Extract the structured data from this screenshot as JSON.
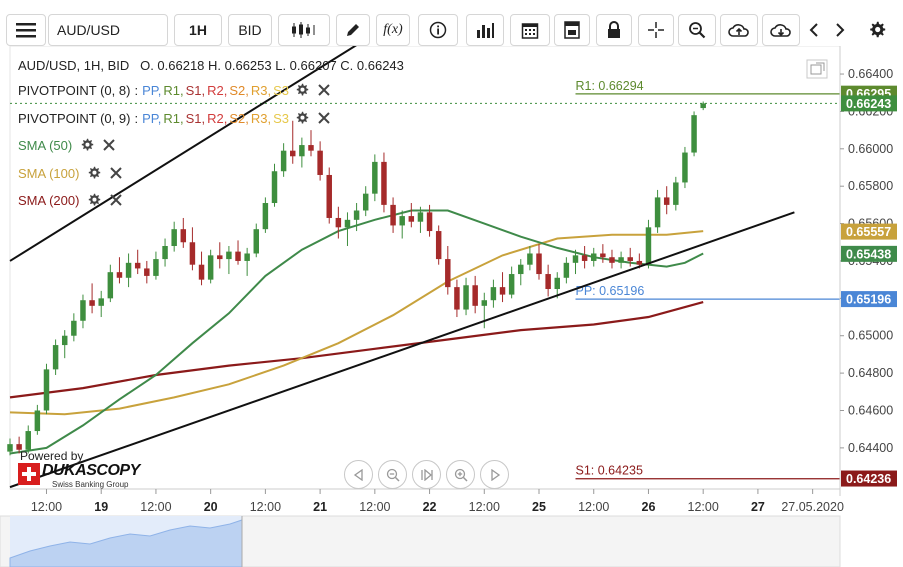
{
  "toolbar": {
    "symbol": "AUD/USD",
    "timeframe": "1H",
    "price_side": "BID",
    "fx_label": "f(x)"
  },
  "legend": {
    "ohlc": "AUD/USD, 1H, BID   O. 0.66218 H. 0.66253 L. 0.66207 C. 0.66243",
    "pivot1_name": "PIVOTPOINT (0, 8)",
    "pivot2_name": "PIVOTPOINT (0, 9)",
    "pivot_sep": ":",
    "pp": "PP,",
    "r1": "R1,",
    "s1": "S1,",
    "r2": "R2,",
    "s2": "S2,",
    "r3": "R3,",
    "s3": "S3",
    "sma50": "SMA (50)",
    "sma100": "SMA (100)",
    "sma200": "SMA (200)"
  },
  "logo": {
    "powered": "Powered by",
    "brand": "DUKASCOPY",
    "tagline": "Swiss Banking Group"
  },
  "colors": {
    "candle_up": "#3e8e3e",
    "candle_down": "#a52a2a",
    "sma50": "#3f8a4a",
    "sma100": "#c8a23c",
    "sma200": "#8b1a1a",
    "pp": "#4a86d6",
    "r1": "#5d8a2e",
    "s1": "#a83232",
    "r2": "#d23c3c",
    "s2": "#e08a2a",
    "r3": "#e0a030",
    "s3": "#e6c84a"
  },
  "chart_data": {
    "type": "candlestick",
    "symbol": "AUD/USD",
    "interval": "1H",
    "side": "BID",
    "last": {
      "open": 0.66218,
      "high": 0.66253,
      "low": 0.66207,
      "close": 0.66243
    },
    "ylim": [
      0.642,
      0.665
    ],
    "y_ticks": [
      0.644,
      0.646,
      0.648,
      0.65,
      0.652,
      0.654,
      0.656,
      0.658,
      0.66,
      0.662,
      0.664
    ],
    "y_tick_labels": [
      "0.64400",
      "0.64600",
      "0.64800",
      "0.65000",
      "0.65200",
      "0.65400",
      "0.65600",
      "0.65800",
      "0.66000",
      "0.66200",
      "0.66400"
    ],
    "x_ticks": [
      {
        "label": "12:00",
        "t": -6
      },
      {
        "label": "19",
        "t": 0
      },
      {
        "label": "12:00",
        "t": 6
      },
      {
        "label": "20",
        "t": 12
      },
      {
        "label": "12:00",
        "t": 18
      },
      {
        "label": "21",
        "t": 24
      },
      {
        "label": "12:00",
        "t": 30
      },
      {
        "label": "22",
        "t": 36
      },
      {
        "label": "12:00",
        "t": 42
      },
      {
        "label": "25",
        "t": 48
      },
      {
        "label": "12:00",
        "t": 54
      },
      {
        "label": "26",
        "t": 60
      },
      {
        "label": "12:00",
        "t": 66
      },
      {
        "label": "27",
        "t": 72
      },
      {
        "label": "27.05.2020",
        "t": 78
      }
    ],
    "x_range": [
      -10,
      81
    ],
    "price_tags": [
      {
        "label": "0.66295",
        "value": 0.66295,
        "color": "#5d8a2e"
      },
      {
        "label": "0.66243",
        "value": 0.66243,
        "color": "#3e8e3e"
      },
      {
        "label": "0.65557",
        "value": 0.65557,
        "color": "#c8a23c"
      },
      {
        "label": "0.65438",
        "value": 0.65438,
        "color": "#3f8a4a"
      },
      {
        "label": "0.65196",
        "value": 0.65196,
        "color": "#4a86d6"
      },
      {
        "label": "0.64236",
        "value": 0.64236,
        "color": "#8b1a1a"
      }
    ],
    "pivot_lines": [
      {
        "name": "R1",
        "label": "R1: 0.66294",
        "value": 0.66294,
        "color": "#5d8a2e"
      },
      {
        "name": "PP",
        "label": "PP: 0.65196",
        "value": 0.65196,
        "color": "#4a86d6"
      },
      {
        "name": "S1",
        "label": "S1: 0.64235",
        "value": 0.64235,
        "color": "#8b1a1a"
      }
    ],
    "trendlines": [
      {
        "t1": -10,
        "v1": 0.654,
        "t2": 40,
        "v2": 0.6692
      },
      {
        "t1": -10,
        "v1": 0.6419,
        "t2": 76,
        "v2": 0.6566
      }
    ],
    "sma50": [
      [
        -10,
        0.6437
      ],
      [
        -6,
        0.644
      ],
      [
        -2,
        0.6452
      ],
      [
        2,
        0.6466
      ],
      [
        6,
        0.6479
      ],
      [
        10,
        0.6496
      ],
      [
        14,
        0.6512
      ],
      [
        18,
        0.6532
      ],
      [
        22,
        0.6546
      ],
      [
        26,
        0.6556
      ],
      [
        30,
        0.6562
      ],
      [
        34,
        0.6567
      ],
      [
        38,
        0.6567
      ],
      [
        42,
        0.656
      ],
      [
        46,
        0.6553
      ],
      [
        50,
        0.6547
      ],
      [
        54,
        0.6542
      ],
      [
        58,
        0.6539
      ],
      [
        62,
        0.6537
      ],
      [
        64,
        0.6539
      ],
      [
        66,
        0.6544
      ]
    ],
    "sma100": [
      [
        -10,
        0.6459
      ],
      [
        -4,
        0.6458
      ],
      [
        2,
        0.6461
      ],
      [
        8,
        0.6467
      ],
      [
        14,
        0.6474
      ],
      [
        20,
        0.6484
      ],
      [
        26,
        0.6496
      ],
      [
        32,
        0.6511
      ],
      [
        38,
        0.6529
      ],
      [
        44,
        0.6543
      ],
      [
        50,
        0.6552
      ],
      [
        56,
        0.6554
      ],
      [
        62,
        0.6554
      ],
      [
        66,
        0.6556
      ]
    ],
    "sma200": [
      [
        -10,
        0.6467
      ],
      [
        -2,
        0.6472
      ],
      [
        6,
        0.6479
      ],
      [
        14,
        0.6484
      ],
      [
        22,
        0.6488
      ],
      [
        30,
        0.6493
      ],
      [
        38,
        0.6498
      ],
      [
        46,
        0.6503
      ],
      [
        54,
        0.6506
      ],
      [
        60,
        0.651
      ],
      [
        66,
        0.6518
      ]
    ],
    "candles": [
      [
        -10,
        0.6438,
        0.6445,
        0.6436,
        0.6442
      ],
      [
        -9,
        0.6442,
        0.6446,
        0.6437,
        0.6439
      ],
      [
        -8,
        0.6439,
        0.6452,
        0.6437,
        0.6449
      ],
      [
        -7,
        0.6449,
        0.6463,
        0.6447,
        0.646
      ],
      [
        -6,
        0.646,
        0.6485,
        0.6458,
        0.6482
      ],
      [
        -5,
        0.6482,
        0.6498,
        0.6479,
        0.6495
      ],
      [
        -4,
        0.6495,
        0.6503,
        0.6488,
        0.65
      ],
      [
        -3,
        0.65,
        0.6512,
        0.6497,
        0.6508
      ],
      [
        -2,
        0.6508,
        0.6522,
        0.6504,
        0.6519
      ],
      [
        -1,
        0.6519,
        0.6528,
        0.6512,
        0.6516
      ],
      [
        0,
        0.6516,
        0.6524,
        0.651,
        0.652
      ],
      [
        1,
        0.652,
        0.6538,
        0.6518,
        0.6534
      ],
      [
        2,
        0.6534,
        0.6542,
        0.6528,
        0.6531
      ],
      [
        3,
        0.6531,
        0.6544,
        0.6526,
        0.6539
      ],
      [
        4,
        0.6539,
        0.6546,
        0.6533,
        0.6536
      ],
      [
        5,
        0.6536,
        0.654,
        0.6528,
        0.6532
      ],
      [
        6,
        0.6532,
        0.6545,
        0.653,
        0.6541
      ],
      [
        7,
        0.6541,
        0.6552,
        0.6537,
        0.6548
      ],
      [
        8,
        0.6548,
        0.6561,
        0.6545,
        0.6557
      ],
      [
        9,
        0.6557,
        0.6563,
        0.6547,
        0.655
      ],
      [
        10,
        0.655,
        0.6558,
        0.6535,
        0.6538
      ],
      [
        11,
        0.6538,
        0.6545,
        0.6527,
        0.653
      ],
      [
        12,
        0.653,
        0.6546,
        0.6528,
        0.6543
      ],
      [
        13,
        0.6543,
        0.655,
        0.6536,
        0.6541
      ],
      [
        14,
        0.6541,
        0.6548,
        0.6533,
        0.6545
      ],
      [
        15,
        0.6545,
        0.6551,
        0.6538,
        0.654
      ],
      [
        16,
        0.654,
        0.6547,
        0.6532,
        0.6544
      ],
      [
        17,
        0.6544,
        0.656,
        0.6542,
        0.6557
      ],
      [
        18,
        0.6557,
        0.6574,
        0.6555,
        0.6571
      ],
      [
        19,
        0.6571,
        0.6592,
        0.6569,
        0.6588
      ],
      [
        20,
        0.6588,
        0.6603,
        0.6585,
        0.6599
      ],
      [
        21,
        0.6599,
        0.6615,
        0.6592,
        0.6596
      ],
      [
        22,
        0.6596,
        0.6606,
        0.659,
        0.6602
      ],
      [
        23,
        0.6602,
        0.661,
        0.6596,
        0.6599
      ],
      [
        24,
        0.6599,
        0.6604,
        0.6583,
        0.6586
      ],
      [
        25,
        0.6586,
        0.659,
        0.656,
        0.6563
      ],
      [
        26,
        0.6563,
        0.6569,
        0.6552,
        0.6558
      ],
      [
        27,
        0.6558,
        0.6566,
        0.6548,
        0.6562
      ],
      [
        28,
        0.6562,
        0.6571,
        0.6556,
        0.6567
      ],
      [
        29,
        0.6567,
        0.658,
        0.6564,
        0.6576
      ],
      [
        30,
        0.6576,
        0.6597,
        0.6572,
        0.6593
      ],
      [
        31,
        0.6593,
        0.6598,
        0.6566,
        0.657
      ],
      [
        32,
        0.657,
        0.6574,
        0.6555,
        0.6559
      ],
      [
        33,
        0.6559,
        0.6567,
        0.6552,
        0.6564
      ],
      [
        34,
        0.6564,
        0.6571,
        0.6558,
        0.6561
      ],
      [
        35,
        0.6561,
        0.6569,
        0.6555,
        0.6566
      ],
      [
        36,
        0.6566,
        0.657,
        0.6553,
        0.6556
      ],
      [
        37,
        0.6556,
        0.6559,
        0.6538,
        0.6541
      ],
      [
        38,
        0.6541,
        0.6548,
        0.6522,
        0.6526
      ],
      [
        39,
        0.6526,
        0.653,
        0.651,
        0.6514
      ],
      [
        40,
        0.6514,
        0.6531,
        0.6511,
        0.6527
      ],
      [
        41,
        0.6527,
        0.6532,
        0.6512,
        0.6516
      ],
      [
        42,
        0.6516,
        0.6523,
        0.6504,
        0.6519
      ],
      [
        43,
        0.6519,
        0.653,
        0.6515,
        0.6526
      ],
      [
        44,
        0.6526,
        0.6534,
        0.6518,
        0.6522
      ],
      [
        45,
        0.6522,
        0.6537,
        0.652,
        0.6533
      ],
      [
        46,
        0.6533,
        0.6541,
        0.6527,
        0.6538
      ],
      [
        47,
        0.6538,
        0.6548,
        0.6535,
        0.6544
      ],
      [
        48,
        0.6544,
        0.6549,
        0.653,
        0.6533
      ],
      [
        49,
        0.6533,
        0.6538,
        0.6521,
        0.6525
      ],
      [
        50,
        0.6525,
        0.6534,
        0.652,
        0.6531
      ],
      [
        51,
        0.6531,
        0.6542,
        0.6528,
        0.6539
      ],
      [
        52,
        0.6539,
        0.6546,
        0.6533,
        0.6543
      ],
      [
        53,
        0.6543,
        0.6548,
        0.6536,
        0.654
      ],
      [
        54,
        0.654,
        0.6547,
        0.6537,
        0.6544
      ],
      [
        55,
        0.6544,
        0.6549,
        0.6539,
        0.6542
      ],
      [
        56,
        0.6542,
        0.6546,
        0.6536,
        0.6539
      ],
      [
        57,
        0.6539,
        0.6545,
        0.6536,
        0.6542
      ],
      [
        58,
        0.6542,
        0.6547,
        0.6537,
        0.654
      ],
      [
        59,
        0.654,
        0.6544,
        0.6536,
        0.6538
      ],
      [
        60,
        0.6538,
        0.6562,
        0.6536,
        0.6558
      ],
      [
        61,
        0.6558,
        0.6578,
        0.6555,
        0.6574
      ],
      [
        62,
        0.6574,
        0.658,
        0.6565,
        0.657
      ],
      [
        63,
        0.657,
        0.6585,
        0.6567,
        0.6582
      ],
      [
        64,
        0.6582,
        0.6601,
        0.6579,
        0.6598
      ],
      [
        65,
        0.6598,
        0.662,
        0.6596,
        0.6618
      ],
      [
        66,
        0.66218,
        0.66253,
        0.66207,
        0.66243
      ]
    ]
  }
}
